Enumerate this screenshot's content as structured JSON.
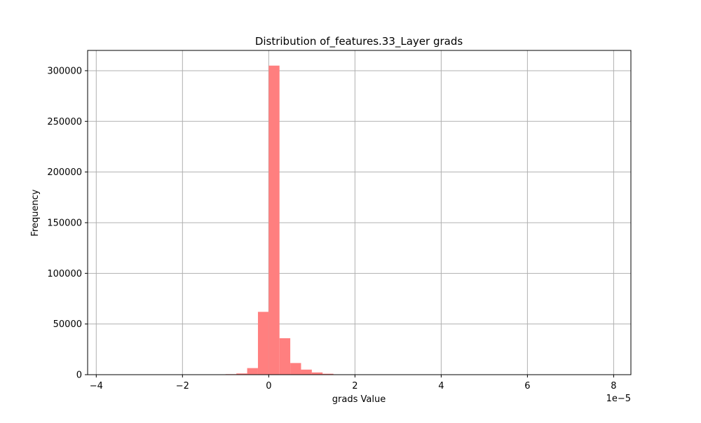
{
  "chart_data": {
    "type": "histogram",
    "title": "Distribution of_features.33_Layer grads",
    "xlabel": "grads Value",
    "ylabel": "Frequency",
    "x_offset_label": "1e−5",
    "x_scale": 1e-05,
    "xlim": [
      -4.2,
      8.4
    ],
    "ylim": [
      0,
      320000
    ],
    "xticks": [
      -4,
      -2,
      0,
      2,
      4,
      6,
      8
    ],
    "xtick_labels": [
      "−4",
      "−2",
      "0",
      "2",
      "4",
      "6",
      "8"
    ],
    "yticks": [
      0,
      50000,
      100000,
      150000,
      200000,
      250000,
      300000
    ],
    "ytick_labels": [
      "0",
      "50000",
      "100000",
      "150000",
      "200000",
      "250000",
      "300000"
    ],
    "grid": true,
    "bar_color": "#ff7f7f",
    "bins": [
      {
        "x0": -1.0,
        "x1": -0.75,
        "count": 500
      },
      {
        "x0": -0.75,
        "x1": -0.5,
        "count": 1200
      },
      {
        "x0": -0.5,
        "x1": -0.25,
        "count": 6500
      },
      {
        "x0": -0.25,
        "x1": 0.0,
        "count": 62000
      },
      {
        "x0": 0.0,
        "x1": 0.25,
        "count": 305000
      },
      {
        "x0": 0.25,
        "x1": 0.5,
        "count": 36000
      },
      {
        "x0": 0.5,
        "x1": 0.75,
        "count": 11500
      },
      {
        "x0": 0.75,
        "x1": 1.0,
        "count": 5000
      },
      {
        "x0": 1.0,
        "x1": 1.25,
        "count": 2200
      },
      {
        "x0": 1.25,
        "x1": 1.5,
        "count": 900
      },
      {
        "x0": 1.5,
        "x1": 1.75,
        "count": 300
      }
    ]
  }
}
